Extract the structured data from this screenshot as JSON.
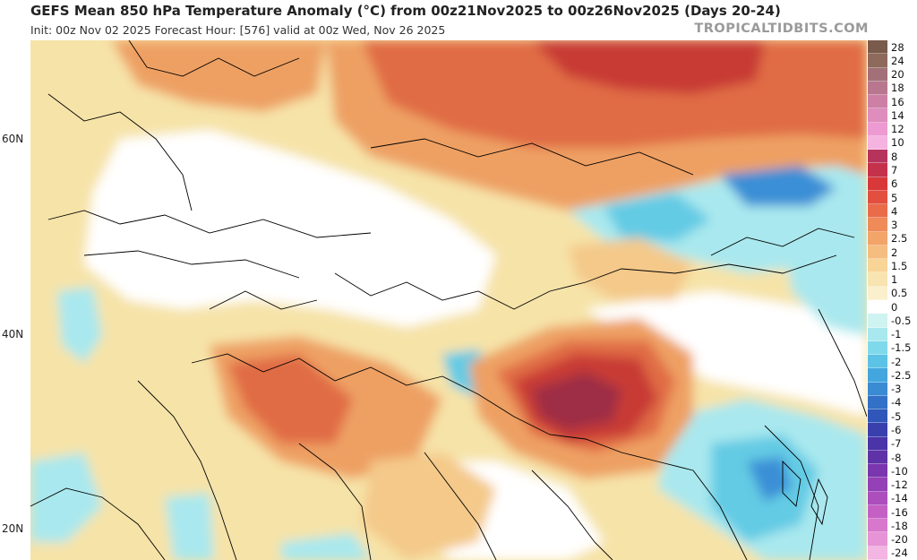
{
  "header": {
    "title": "GEFS Mean 850 hPa Temperature Anomaly (°C) from 00z21Nov2025 to 00z26Nov2025 (Days 20-24)",
    "subtitle": "Init: 00z Nov 02 2025   Forecast Hour: [576]   valid at 00z Wed, Nov 26 2025",
    "brand": "TROPICALTIDBITS.COM"
  },
  "map": {
    "lat_labels": [
      "60N",
      "40N",
      "20N"
    ],
    "colors": {
      "base": "#f6e3a8",
      "neutral": "#ffffff",
      "warm_light": "#f4c98a",
      "warm": "#eea063",
      "warm_strong": "#e06c45",
      "hot": "#c83a34",
      "hottest": "#9e2f45",
      "cool_light": "#a9e8ee",
      "cool": "#63cbe4",
      "cold": "#3b8fd6",
      "colder": "#2f62c2"
    }
  },
  "colorbar": {
    "levels": [
      {
        "label": "28",
        "color": "#7a5a4a"
      },
      {
        "label": "24",
        "color": "#8e6a5c"
      },
      {
        "label": "20",
        "color": "#a3707a"
      },
      {
        "label": "18",
        "color": "#b9778f"
      },
      {
        "label": "16",
        "color": "#cd80a6"
      },
      {
        "label": "14",
        "color": "#de8dbd"
      },
      {
        "label": "12",
        "color": "#ee9ad2"
      },
      {
        "label": "10",
        "color": "#f5b3e0"
      },
      {
        "label": "8",
        "color": "#b6345c"
      },
      {
        "label": "7",
        "color": "#c4314a"
      },
      {
        "label": "6",
        "color": "#d8383a"
      },
      {
        "label": "5",
        "color": "#e24f3f"
      },
      {
        "label": "4",
        "color": "#e96b4a"
      },
      {
        "label": "3",
        "color": "#ef8b58"
      },
      {
        "label": "2.5",
        "color": "#f3a468"
      },
      {
        "label": "2",
        "color": "#f6bd80"
      },
      {
        "label": "1.5",
        "color": "#f8d497"
      },
      {
        "label": "1",
        "color": "#f8e4b0"
      },
      {
        "label": "0.5",
        "color": "#fbf0cd"
      },
      {
        "label": "0",
        "color": "#ffffff"
      },
      {
        "label": "-0.5",
        "color": "#cff3f0"
      },
      {
        "label": "-1",
        "color": "#a9e8ee"
      },
      {
        "label": "-1.5",
        "color": "#7fd9ea"
      },
      {
        "label": "-2",
        "color": "#5cc2e6"
      },
      {
        "label": "-2.5",
        "color": "#43a6de"
      },
      {
        "label": "-3",
        "color": "#3a8ad4"
      },
      {
        "label": "-4",
        "color": "#3370c8"
      },
      {
        "label": "-5",
        "color": "#2f56b8"
      },
      {
        "label": "-6",
        "color": "#3a3fae"
      },
      {
        "label": "-7",
        "color": "#4b33a8"
      },
      {
        "label": "-8",
        "color": "#6032a8"
      },
      {
        "label": "-10",
        "color": "#7a36ae"
      },
      {
        "label": "-12",
        "color": "#9440b6"
      },
      {
        "label": "-14",
        "color": "#ad4ebd"
      },
      {
        "label": "-16",
        "color": "#c460c4"
      },
      {
        "label": "-18",
        "color": "#d778cc"
      },
      {
        "label": "-20",
        "color": "#e794d6"
      },
      {
        "label": "-24",
        "color": "#f3b5e1"
      }
    ]
  }
}
